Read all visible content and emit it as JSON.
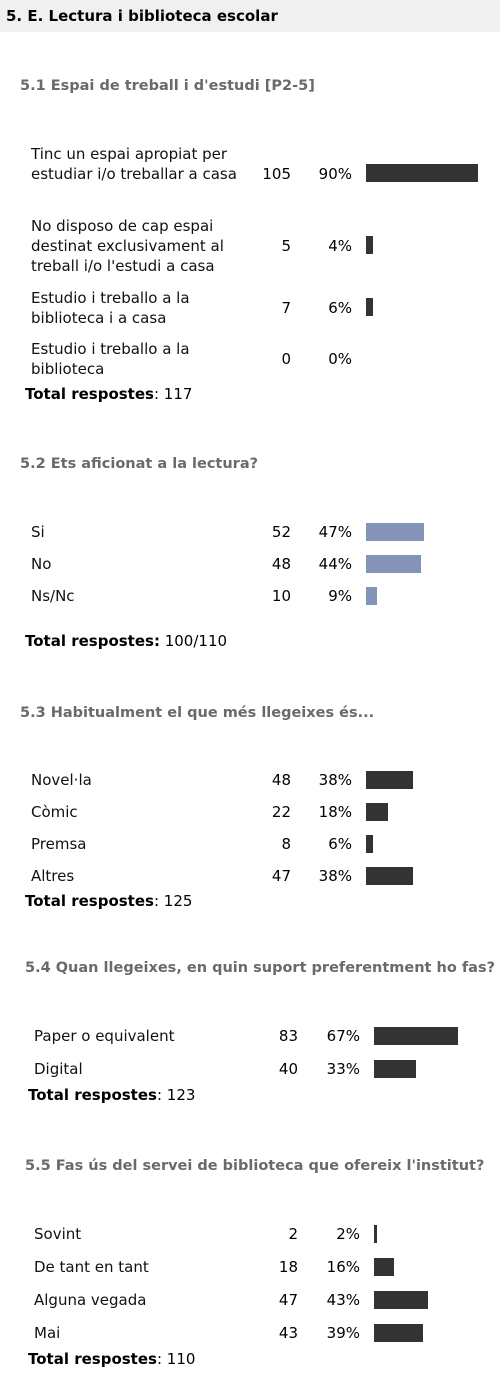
{
  "header": {
    "title": "5. E. Lectura i biblioteca escolar"
  },
  "colors": {
    "bar_dark": "#333333",
    "bar_blue": "#8493b8",
    "title_gray": "#6a6a6a",
    "header_bg": "#f0f0f0"
  },
  "sections": {
    "s1": {
      "title": "5.1 Espai de treball i d'estudi [P2-5]",
      "items": [
        {
          "label": "Tinc un espai apropiat per estudiar i/o treballar a casa",
          "count": "105",
          "pct": "90%",
          "value": 90
        },
        {
          "label": "No disposo de cap espai destinat exclusivament al treball i/o l'estudi a casa",
          "count": "5",
          "pct": "4%",
          "value": 4
        },
        {
          "label": "Estudio i treballo a la biblioteca i a casa",
          "count": "7",
          "pct": "6%",
          "value": 6
        },
        {
          "label": "Estudio i treballo a la biblioteca",
          "count": "0",
          "pct": "0%",
          "value": 0
        }
      ],
      "total_label": "Total respostes",
      "total_value": ": 117"
    },
    "s2": {
      "title": "5.2 Ets aficionat a la lectura?",
      "items": [
        {
          "label": "Si",
          "count": "52",
          "pct": "47%",
          "value": 47
        },
        {
          "label": "No",
          "count": "48",
          "pct": "44%",
          "value": 44
        },
        {
          "label": "Ns/Nc",
          "count": "10",
          "pct": "9%",
          "value": 9
        }
      ],
      "total_label": "Total respostes:",
      "total_value": " 100/110"
    },
    "s3": {
      "title": "5.3 Habitualment el que més llegeixes és...",
      "items": [
        {
          "label": "Novel·la",
          "count": "48",
          "pct": "38%",
          "value": 38
        },
        {
          "label": "Còmic",
          "count": "22",
          "pct": "18%",
          "value": 18
        },
        {
          "label": "Premsa",
          "count": "8",
          "pct": "6%",
          "value": 6
        },
        {
          "label": "Altres",
          "count": "47",
          "pct": "38%",
          "value": 38
        }
      ],
      "total_label": "Total respostes",
      "total_value": ": 125"
    },
    "s4": {
      "title": "5.4 Quan llegeixes, en quin suport preferentment ho fas?",
      "items": [
        {
          "label": "Paper o equivalent",
          "count": "83",
          "pct": "67%",
          "value": 67
        },
        {
          "label": "Digital",
          "count": "40",
          "pct": "33%",
          "value": 33
        }
      ],
      "total_label": "Total respostes",
      "total_value": ": 123"
    },
    "s5": {
      "title": "5.5 Fas ús del servei de biblioteca que ofereix l'institut?",
      "items": [
        {
          "label": "Sovint",
          "count": "2",
          "pct": "2%",
          "value": 2
        },
        {
          "label": "De tant en tant",
          "count": "18",
          "pct": "16%",
          "value": 16
        },
        {
          "label": "Alguna vegada",
          "count": "47",
          "pct": "43%",
          "value": 43
        },
        {
          "label": "Mai",
          "count": "43",
          "pct": "39%",
          "value": 39
        }
      ],
      "total_label": "Total respostes",
      "total_value": ": 110"
    }
  }
}
